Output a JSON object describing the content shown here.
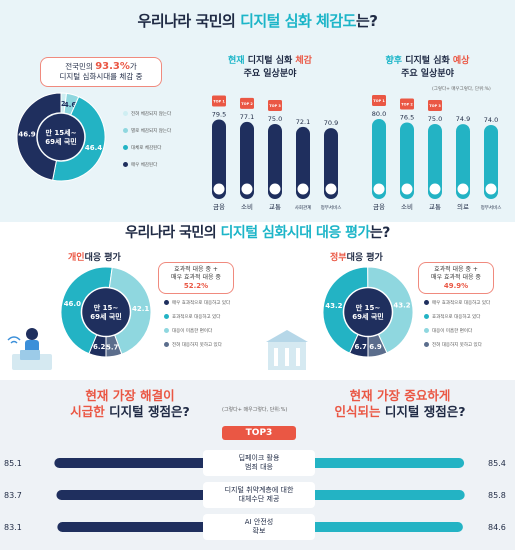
{
  "colors": {
    "navy": "#1f2f5e",
    "teal": "#23b3c4",
    "lightTeal": "#8fd7df",
    "paleTeal": "#cfeef2",
    "coral": "#ea5744"
  },
  "section1": {
    "title_pre": "우리나라 국민의 ",
    "title_hl": "디지털 심화 체감도",
    "title_post": "는?",
    "callout_line1_pre": "전국민의 ",
    "callout_line1_val": "93.3%",
    "callout_line1_post": "가",
    "callout_line2": "디지털 심화시대를 체감 중",
    "donut_center_line1": "만 15세~",
    "donut_center_line2": "69세 국민",
    "legend": [
      "전혀 체감되지 않는다",
      "별로 체감되지 않는다",
      "대체로 체감된다",
      "매우 체감된다"
    ],
    "panel_now_title_hl1": "현재",
    "panel_now_title_mid": " 디지털 심화 ",
    "panel_now_title_hl2": "체감",
    "panel_now_title_line2": "주요 일상분야",
    "panel_future_title_hl1": "향후",
    "panel_future_title_mid": " 디지털 심화 ",
    "panel_future_title_hl2": "예상",
    "panel_future_title_line2": "주요 일상분야",
    "future_note": "(그렇다+ 매우그렇다, 단위:%)"
  },
  "section2": {
    "title_pre": "우리나라 국민의 ",
    "title_hl": "디지털 심화시대 대응 평가",
    "title_post": "는?",
    "left_title_hl": "개인",
    "left_title_post": "대응 평가",
    "right_title_hl": "정부",
    "right_title_post": "대응 평가",
    "left_callout_l1": "효과적 대응 중 +",
    "left_callout_l2": "매우 효과적 대응 중",
    "left_callout_val": "52.2%",
    "right_callout_l1": "효과적 대응 중 +",
    "right_callout_l2": "매우 효과적 대응 중",
    "right_callout_val": "49.9%",
    "donut_center_line1": "만 15~",
    "donut_center_line2": "69세 국민",
    "legend": [
      "매우 효과적으로 대응하고 있다",
      "효과적으로 대응하고 있다",
      "대응이 미흡한 편이다",
      "전혀 대응하지 못하고 있다"
    ]
  },
  "section3": {
    "left_title_l1_hl": "현재 가장 해결이",
    "left_title_l2_hl": "시급한",
    "left_title_l2_post": " 디지털 쟁점은?",
    "right_title_l1_hl": "현재 가장 중요하게",
    "right_title_l2_hl": "인식되는",
    "right_title_l2_post": " 디지털 쟁점은?",
    "unit_note": "(그렇다+ 매우그렇다, 단위:%)",
    "top3_label": "TOP3",
    "topics": [
      {
        "l1": "딥페이크 활용",
        "l2": "범죄 대응",
        "urgent": 85.1,
        "important": 85.4
      },
      {
        "l1": "디지털 취약계층에 대한",
        "l2": "대체수단 제공",
        "urgent": 83.7,
        "important": 85.8
      },
      {
        "l1": "AI 안전성",
        "l2": "확보",
        "urgent": 83.1,
        "important": 84.6
      }
    ]
  },
  "chart_data": [
    {
      "type": "pie",
      "title": "우리나라 국민의 디지털 심화 체감도는?",
      "categories": [
        "전혀 체감되지 않는다",
        "별로 체감되지 않는다",
        "대체로 체감된다",
        "매우 체감된다"
      ],
      "values": [
        2.0,
        4.6,
        46.4,
        46.9
      ],
      "value_labels": [
        "2",
        "4.6",
        "46.4",
        "46.9"
      ]
    },
    {
      "type": "bar",
      "title": "현재 디지털 심화 체감 주요 일상분야",
      "categories": [
        "금융",
        "소비",
        "교통",
        "사회관계",
        "정부서비스"
      ],
      "values": [
        79.5,
        77.1,
        75.0,
        72.1,
        70.9
      ],
      "value_labels": [
        "79.5",
        "77.1",
        "75.0",
        "72.1",
        "70.9"
      ],
      "badges": [
        "TOP 1",
        "TOP 2",
        "TOP 3"
      ],
      "ylim": [
        0,
        100
      ]
    },
    {
      "type": "bar",
      "title": "향후 디지털 심화 예상 주요 일상분야",
      "categories": [
        "금융",
        "소비",
        "교통",
        "의료",
        "정부서비스"
      ],
      "values": [
        80.0,
        76.5,
        75.0,
        74.9,
        74.0
      ],
      "value_labels": [
        "80.0",
        "76.5",
        "75.0",
        "74.9",
        "74.0"
      ],
      "badges": [
        "TOP 1",
        "TOP 2",
        "TOP 3"
      ],
      "ylim": [
        0,
        100
      ]
    },
    {
      "type": "pie",
      "title": "개인대응 평가",
      "categories": [
        "매우 효과적으로 대응하고 있다",
        "효과적으로 대응하고 있다",
        "대응이 미흡한 편이다",
        "전혀 대응하지 못하고 있다"
      ],
      "values": [
        6.2,
        46.0,
        42.1,
        5.7
      ],
      "value_labels": [
        "6.2",
        "46.0",
        "42.1",
        "5.7"
      ]
    },
    {
      "type": "pie",
      "title": "정부대응 평가",
      "categories": [
        "매우 효과적으로 대응하고 있다",
        "효과적으로 대응하고 있다",
        "대응이 미흡한 편이다",
        "전혀 대응하지 못하고 있다"
      ],
      "values": [
        6.7,
        43.2,
        43.2,
        6.9
      ],
      "value_labels": [
        "6.7",
        "43.2",
        "43.2",
        "6.9"
      ]
    },
    {
      "type": "bar",
      "title": "현재 가장 해결이 시급한 디지털 쟁점은? / 현재 가장 중요하게 인식되는 디지털 쟁점은?",
      "categories": [
        "딥페이크 활용 범죄 대응",
        "디지털 취약계층에 대한 대체수단 제공",
        "AI 안전성 확보"
      ],
      "series": [
        {
          "name": "현재 가장 해결이 시급한 디지털 쟁점",
          "values": [
            85.1,
            83.7,
            83.1
          ]
        },
        {
          "name": "현재 가장 중요하게 인식되는 디지털 쟁점",
          "values": [
            85.4,
            85.8,
            84.6
          ]
        }
      ]
    }
  ]
}
